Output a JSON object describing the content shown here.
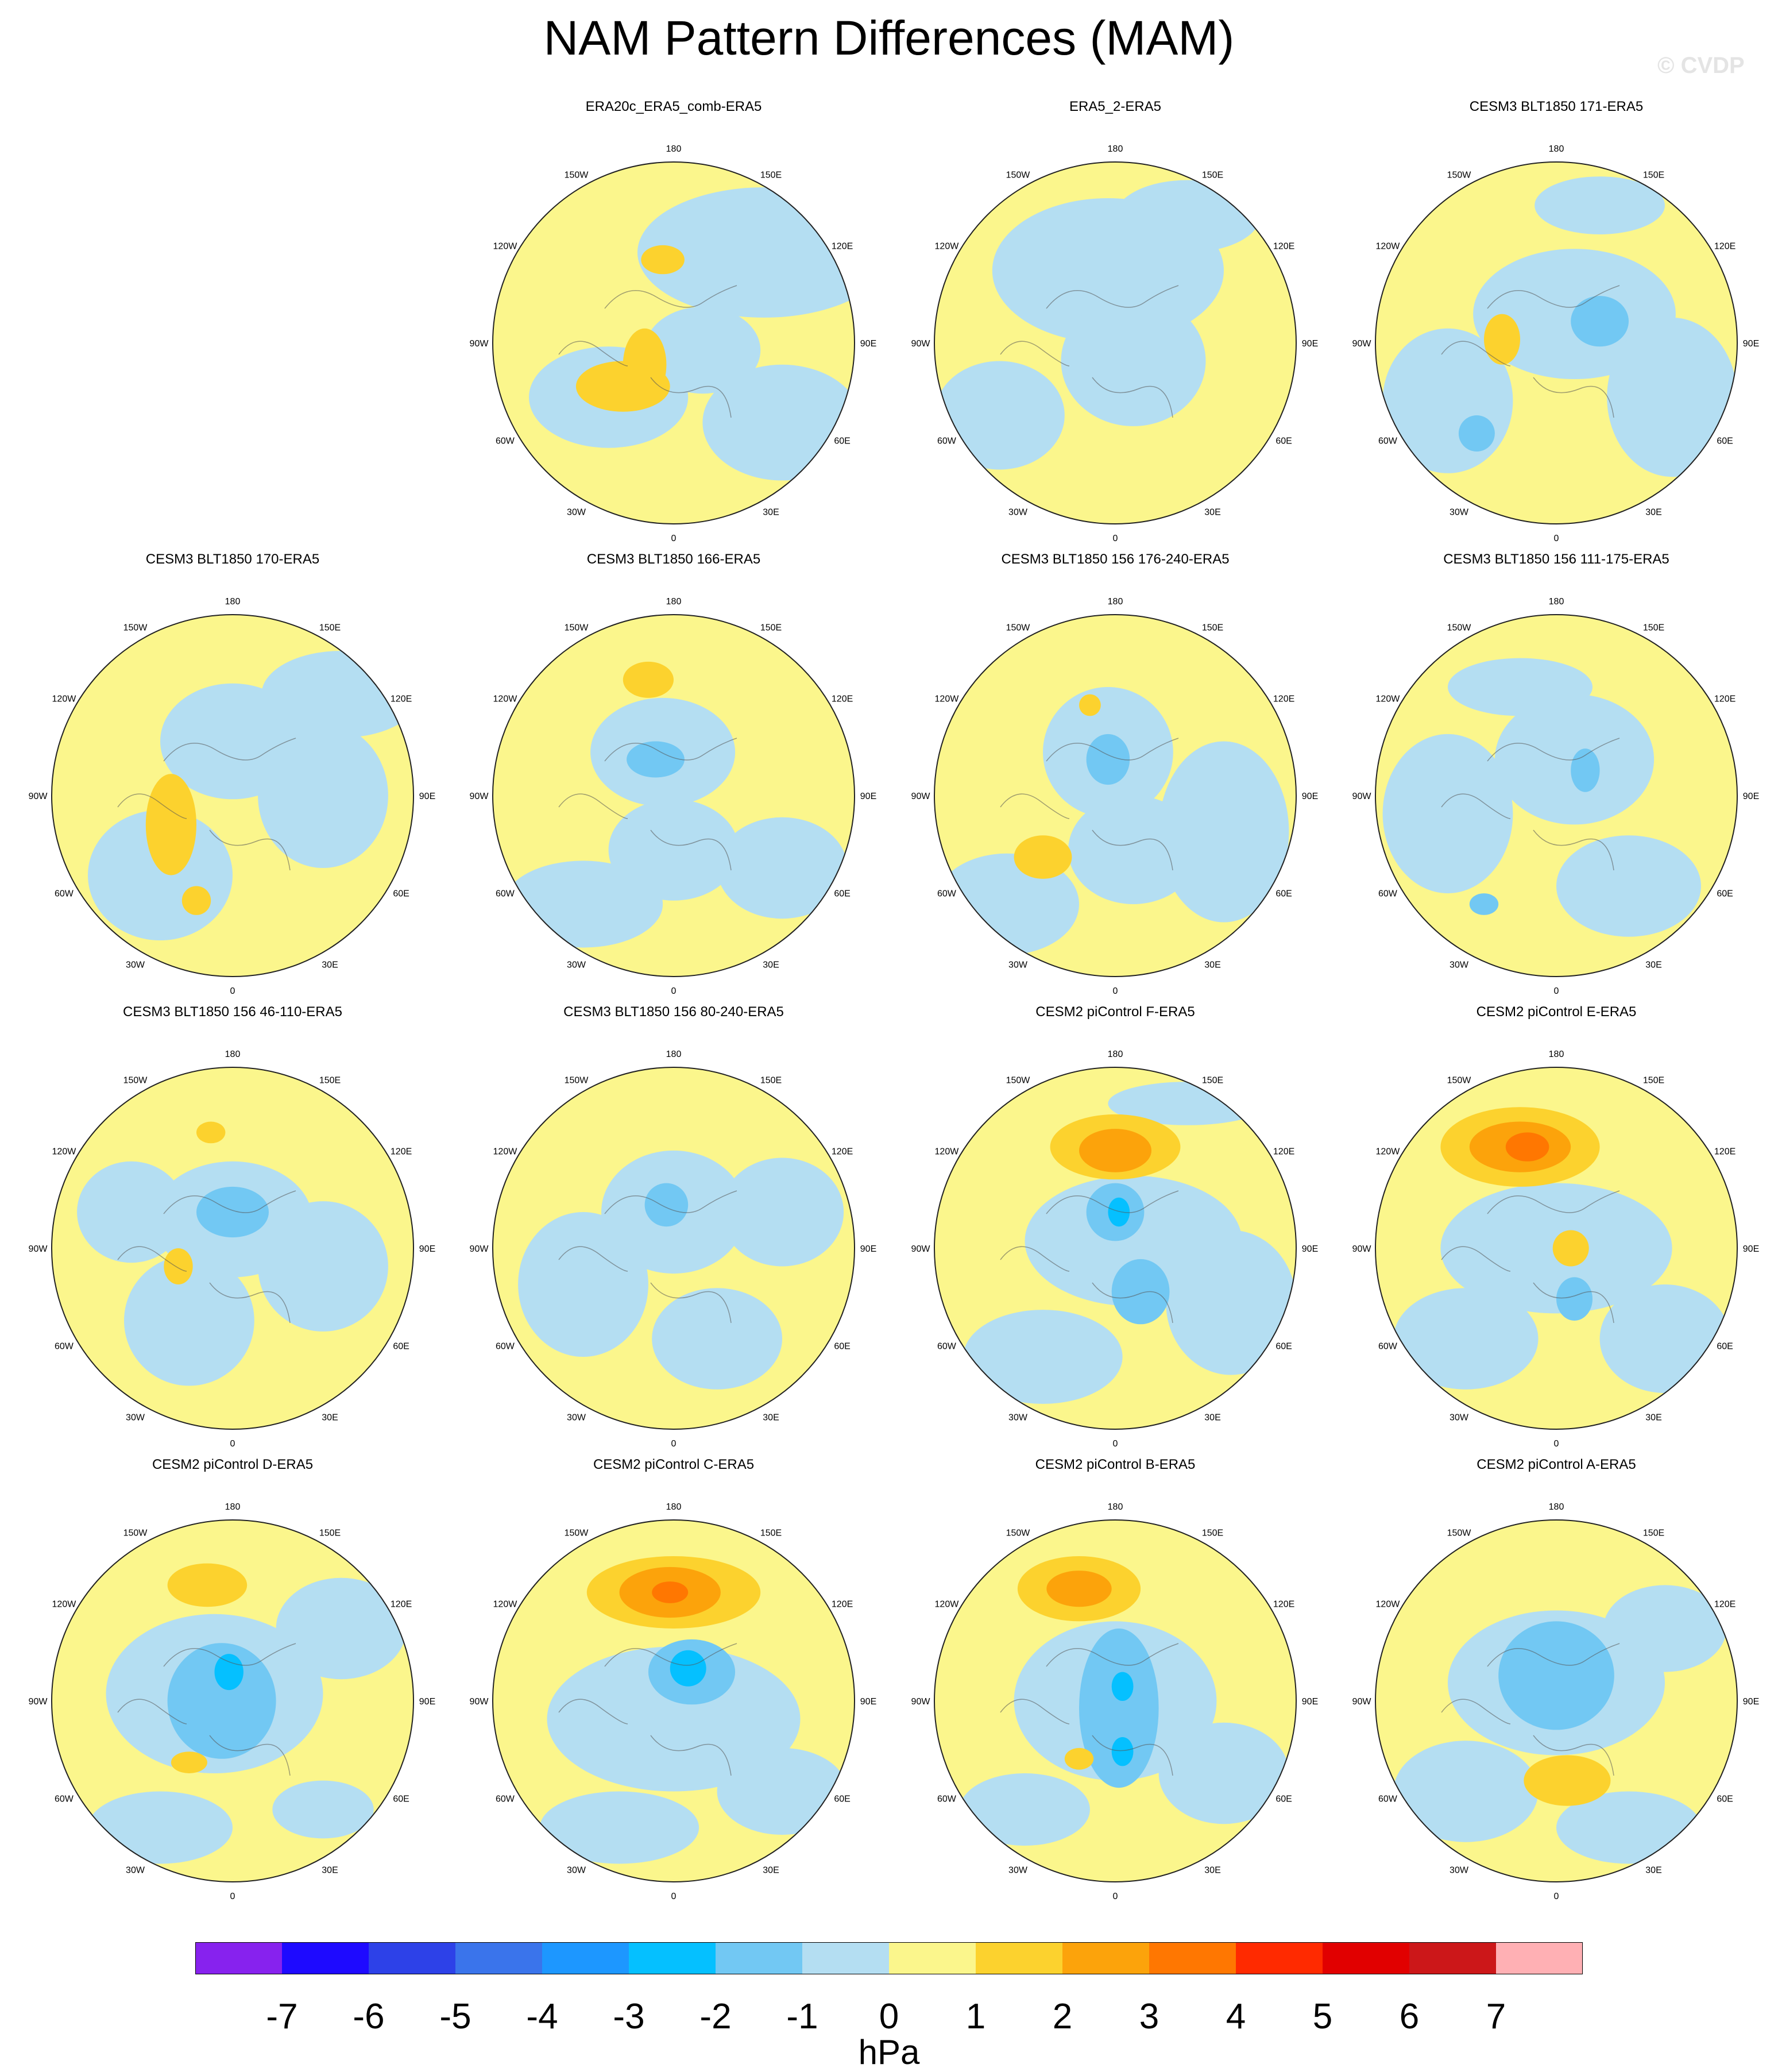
{
  "title": "NAM Pattern Differences (MAM)",
  "watermark": "© CVDP",
  "units": "hPa",
  "lon_labels": [
    "180",
    "150E",
    "120E",
    "90E",
    "60E",
    "30E",
    "0",
    "30W",
    "60W",
    "90W",
    "120W",
    "150W"
  ],
  "colorbar": {
    "colors": [
      "#8722ee",
      "#1e0aff",
      "#2d41e8",
      "#3a74eb",
      "#1d97ff",
      "#05c0ff",
      "#72c8f3",
      "#b4def2",
      "#fbf68c",
      "#fcd22e",
      "#fca30b",
      "#ff7701",
      "#ff2a00",
      "#e10000",
      "#cc1719",
      "#ffb0b4"
    ],
    "labels": [
      "-7",
      "-6",
      "-5",
      "-4",
      "-3",
      "-2",
      "-1",
      "0",
      "1",
      "2",
      "3",
      "4",
      "5",
      "6",
      "7"
    ]
  },
  "panels": [
    {
      "title": "ERA20c_ERA5_comb-ERA5",
      "blobs": [
        [
          0.75,
          0.25,
          0.35,
          0.18,
          -1
        ],
        [
          0.32,
          0.65,
          0.22,
          0.14,
          -1
        ],
        [
          0.8,
          0.72,
          0.22,
          0.16,
          -1
        ],
        [
          0.58,
          0.52,
          0.16,
          0.12,
          -1
        ],
        [
          0.36,
          0.62,
          0.13,
          0.07,
          2
        ],
        [
          0.47,
          0.27,
          0.06,
          0.04,
          2
        ],
        [
          0.42,
          0.56,
          0.06,
          0.1,
          2
        ]
      ]
    },
    {
      "title": "ERA5_2-ERA5",
      "blobs": [
        [
          0.48,
          0.3,
          0.32,
          0.2,
          -1
        ],
        [
          0.55,
          0.55,
          0.2,
          0.18,
          -1
        ],
        [
          0.18,
          0.7,
          0.18,
          0.15,
          -1
        ],
        [
          0.7,
          0.15,
          0.2,
          0.1,
          -1
        ]
      ]
    },
    {
      "title": "CESM3 BLT1850 171-ERA5",
      "blobs": [
        [
          0.55,
          0.42,
          0.28,
          0.18,
          -1
        ],
        [
          0.2,
          0.66,
          0.18,
          0.2,
          -1
        ],
        [
          0.82,
          0.65,
          0.18,
          0.22,
          -1
        ],
        [
          0.62,
          0.12,
          0.18,
          0.08,
          -1
        ],
        [
          0.62,
          0.44,
          0.08,
          0.07,
          -2
        ],
        [
          0.28,
          0.75,
          0.05,
          0.05,
          -2
        ],
        [
          0.35,
          0.49,
          0.05,
          0.07,
          2
        ]
      ]
    },
    {
      "title": "CESM3 BLT1850 170-ERA5",
      "blobs": [
        [
          0.5,
          0.35,
          0.2,
          0.16,
          -1
        ],
        [
          0.3,
          0.72,
          0.2,
          0.18,
          -1
        ],
        [
          0.75,
          0.5,
          0.18,
          0.2,
          -1
        ],
        [
          0.8,
          0.22,
          0.22,
          0.12,
          -1
        ],
        [
          0.33,
          0.58,
          0.07,
          0.14,
          2
        ],
        [
          0.4,
          0.79,
          0.04,
          0.04,
          2
        ]
      ]
    },
    {
      "title": "CESM3 BLT1850 166-ERA5",
      "blobs": [
        [
          0.47,
          0.38,
          0.2,
          0.15,
          -1
        ],
        [
          0.5,
          0.65,
          0.18,
          0.14,
          -1
        ],
        [
          0.8,
          0.7,
          0.18,
          0.14,
          -1
        ],
        [
          0.25,
          0.8,
          0.22,
          0.12,
          -1
        ],
        [
          0.45,
          0.4,
          0.08,
          0.05,
          -2
        ],
        [
          0.43,
          0.18,
          0.07,
          0.05,
          2
        ]
      ]
    },
    {
      "title": "CESM3 BLT1850 156 176-240-ERA5",
      "blobs": [
        [
          0.48,
          0.38,
          0.18,
          0.18,
          -1
        ],
        [
          0.55,
          0.65,
          0.18,
          0.15,
          -1
        ],
        [
          0.2,
          0.8,
          0.2,
          0.14,
          -1
        ],
        [
          0.8,
          0.6,
          0.18,
          0.25,
          -1
        ],
        [
          0.48,
          0.4,
          0.06,
          0.07,
          -2
        ],
        [
          0.3,
          0.67,
          0.08,
          0.06,
          2
        ],
        [
          0.43,
          0.25,
          0.03,
          0.03,
          2
        ]
      ]
    },
    {
      "title": "CESM3 BLT1850 156 111-175-ERA5",
      "blobs": [
        [
          0.55,
          0.4,
          0.22,
          0.18,
          -1
        ],
        [
          0.2,
          0.55,
          0.18,
          0.22,
          -1
        ],
        [
          0.7,
          0.75,
          0.2,
          0.14,
          -1
        ],
        [
          0.4,
          0.2,
          0.2,
          0.08,
          -1
        ],
        [
          0.58,
          0.43,
          0.04,
          0.06,
          -2
        ],
        [
          0.3,
          0.8,
          0.04,
          0.03,
          -2
        ]
      ]
    },
    {
      "title": "CESM3 BLT1850 156 46-110-ERA5",
      "blobs": [
        [
          0.5,
          0.42,
          0.22,
          0.16,
          -1
        ],
        [
          0.38,
          0.7,
          0.18,
          0.18,
          -1
        ],
        [
          0.22,
          0.4,
          0.15,
          0.14,
          -1
        ],
        [
          0.75,
          0.55,
          0.18,
          0.18,
          -1
        ],
        [
          0.5,
          0.4,
          0.1,
          0.07,
          -2
        ],
        [
          0.35,
          0.55,
          0.04,
          0.05,
          2
        ],
        [
          0.44,
          0.18,
          0.04,
          0.03,
          2
        ]
      ]
    },
    {
      "title": "CESM3 BLT1850 156 80-240-ERA5",
      "blobs": [
        [
          0.5,
          0.4,
          0.2,
          0.17,
          -1
        ],
        [
          0.25,
          0.6,
          0.18,
          0.2,
          -1
        ],
        [
          0.62,
          0.75,
          0.18,
          0.14,
          -1
        ],
        [
          0.8,
          0.4,
          0.17,
          0.15,
          -1
        ],
        [
          0.48,
          0.38,
          0.06,
          0.06,
          -2
        ]
      ]
    },
    {
      "title": "CESM2 piControl F-ERA5",
      "blobs": [
        [
          0.55,
          0.48,
          0.3,
          0.18,
          -1
        ],
        [
          0.3,
          0.8,
          0.22,
          0.13,
          -1
        ],
        [
          0.82,
          0.65,
          0.18,
          0.2,
          -1
        ],
        [
          0.7,
          0.1,
          0.22,
          0.06,
          -1
        ],
        [
          0.5,
          0.22,
          0.18,
          0.09,
          2
        ],
        [
          0.5,
          0.23,
          0.1,
          0.06,
          3
        ],
        [
          0.5,
          0.4,
          0.08,
          0.08,
          -2
        ],
        [
          0.51,
          0.4,
          0.03,
          0.04,
          -3
        ],
        [
          0.57,
          0.62,
          0.08,
          0.09,
          -2
        ]
      ]
    },
    {
      "title": "CESM2 piControl E-ERA5",
      "blobs": [
        [
          0.5,
          0.5,
          0.32,
          0.18,
          -1
        ],
        [
          0.25,
          0.75,
          0.2,
          0.14,
          -1
        ],
        [
          0.8,
          0.75,
          0.18,
          0.15,
          -1
        ],
        [
          0.4,
          0.22,
          0.22,
          0.11,
          2
        ],
        [
          0.4,
          0.22,
          0.14,
          0.07,
          3
        ],
        [
          0.42,
          0.22,
          0.06,
          0.04,
          4
        ],
        [
          0.54,
          0.5,
          0.05,
          0.05,
          2
        ],
        [
          0.55,
          0.64,
          0.05,
          0.06,
          -2
        ]
      ]
    },
    {
      "title": "CESM2 piControl D-ERA5",
      "blobs": [
        [
          0.45,
          0.48,
          0.3,
          0.22,
          -1
        ],
        [
          0.3,
          0.85,
          0.2,
          0.1,
          -1
        ],
        [
          0.8,
          0.3,
          0.18,
          0.14,
          -1
        ],
        [
          0.75,
          0.8,
          0.14,
          0.08,
          -1
        ],
        [
          0.47,
          0.5,
          0.15,
          0.16,
          -2
        ],
        [
          0.49,
          0.42,
          0.04,
          0.05,
          -3
        ],
        [
          0.43,
          0.18,
          0.11,
          0.06,
          2
        ],
        [
          0.38,
          0.67,
          0.05,
          0.03,
          2
        ]
      ]
    },
    {
      "title": "CESM2 piControl C-ERA5",
      "blobs": [
        [
          0.5,
          0.55,
          0.35,
          0.2,
          -1
        ],
        [
          0.35,
          0.85,
          0.22,
          0.1,
          -1
        ],
        [
          0.8,
          0.75,
          0.18,
          0.12,
          -1
        ],
        [
          0.5,
          0.2,
          0.24,
          0.1,
          2
        ],
        [
          0.49,
          0.2,
          0.14,
          0.07,
          3
        ],
        [
          0.49,
          0.2,
          0.05,
          0.03,
          4
        ],
        [
          0.55,
          0.42,
          0.12,
          0.09,
          -2
        ],
        [
          0.54,
          0.41,
          0.05,
          0.05,
          -3
        ]
      ]
    },
    {
      "title": "CESM2 piControl B-ERA5",
      "blobs": [
        [
          0.5,
          0.5,
          0.28,
          0.22,
          -1
        ],
        [
          0.25,
          0.8,
          0.18,
          0.1,
          -1
        ],
        [
          0.8,
          0.7,
          0.18,
          0.14,
          -1
        ],
        [
          0.4,
          0.19,
          0.17,
          0.09,
          2
        ],
        [
          0.4,
          0.19,
          0.09,
          0.05,
          3
        ],
        [
          0.51,
          0.52,
          0.11,
          0.22,
          -2
        ],
        [
          0.52,
          0.46,
          0.03,
          0.04,
          -3
        ],
        [
          0.52,
          0.64,
          0.03,
          0.04,
          -3
        ],
        [
          0.4,
          0.66,
          0.04,
          0.03,
          2
        ]
      ]
    },
    {
      "title": "CESM2 piControl A-ERA5",
      "blobs": [
        [
          0.5,
          0.45,
          0.3,
          0.2,
          -1
        ],
        [
          0.25,
          0.75,
          0.2,
          0.14,
          -1
        ],
        [
          0.7,
          0.85,
          0.2,
          0.1,
          -1
        ],
        [
          0.8,
          0.3,
          0.17,
          0.12,
          -1
        ],
        [
          0.5,
          0.43,
          0.16,
          0.15,
          -2
        ],
        [
          0.53,
          0.72,
          0.12,
          0.07,
          2
        ]
      ]
    }
  ]
}
